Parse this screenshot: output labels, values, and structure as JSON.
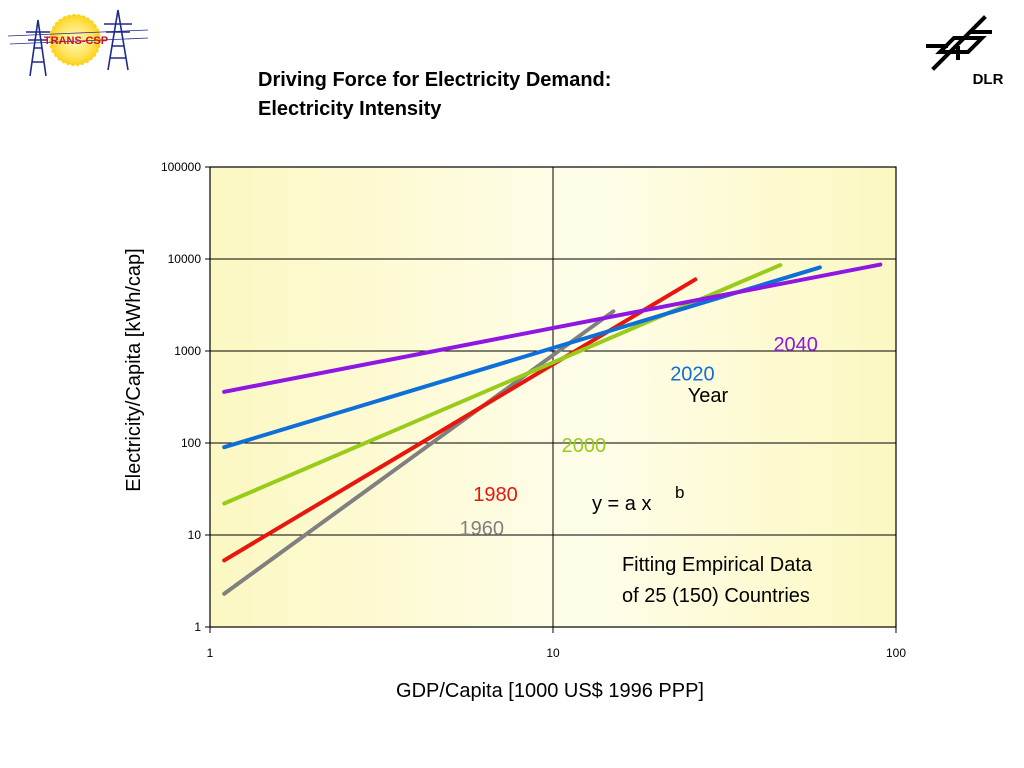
{
  "header": {
    "title_line1": "Driving Force for Electricity Demand:",
    "title_line2": "Electricity Intensity",
    "left_logo_text": "TRANS-CSP",
    "right_logo_text": "DLR"
  },
  "chart_data": {
    "type": "line",
    "xscale": "log",
    "yscale": "log",
    "xlim": [
      1,
      100
    ],
    "ylim": [
      1,
      100000
    ],
    "xlabel": "GDP/Capita [1000 US$ 1996 PPP]",
    "ylabel": "Electricity/Capita [kWh/cap]",
    "xticks": [
      1,
      10,
      100
    ],
    "xtick_labels": [
      "1",
      "10",
      "100"
    ],
    "yticks": [
      1,
      10,
      100,
      1000,
      10000,
      100000
    ],
    "ytick_labels": [
      "1",
      "10",
      "100",
      "1000",
      "10000",
      "100000"
    ],
    "grid": true,
    "legend_title": "Year",
    "series": [
      {
        "name": "1960",
        "color": "#808080",
        "x": [
          1.1,
          15
        ],
        "y": [
          2.3,
          2700
        ],
        "label_at": [
          6.2,
          10
        ]
      },
      {
        "name": "1980",
        "color": "#e8160c",
        "x": [
          1.1,
          26
        ],
        "y": [
          5.3,
          6000
        ],
        "label_at": [
          6.8,
          23.5
        ]
      },
      {
        "name": "2000",
        "color": "#99cc1a",
        "x": [
          1.1,
          46
        ],
        "y": [
          22,
          8600
        ],
        "label_at": [
          12.3,
          80
        ]
      },
      {
        "name": "2020",
        "color": "#0f6fd8",
        "x": [
          1.1,
          60
        ],
        "y": [
          90,
          8100
        ],
        "label_at": [
          25.5,
          475
        ]
      },
      {
        "name": "2040",
        "color": "#8f17e3",
        "x": [
          1.1,
          90
        ],
        "y": [
          360,
          8700
        ],
        "label_at": [
          51,
          1000
        ]
      }
    ],
    "annotations": [
      {
        "text": "y = a x",
        "sup": "b"
      },
      {
        "text": "Fitting Empirical Data"
      },
      {
        "text": "of 25 (150) Countries"
      }
    ]
  }
}
